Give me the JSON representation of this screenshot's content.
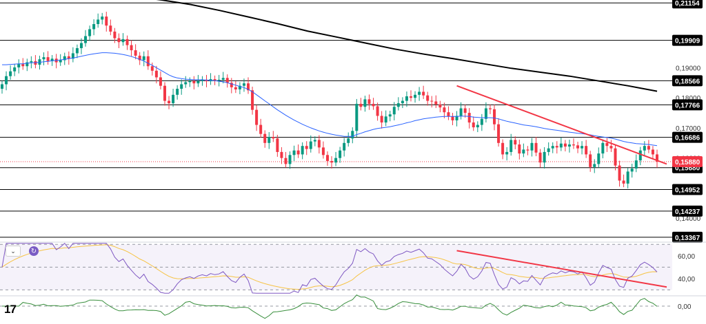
{
  "chart_data": {
    "type": "candlestick",
    "price_axis": {
      "ylim": [
        0.1325,
        0.2125
      ],
      "ticks": [
        "0,19000",
        "0,18000",
        "0,17000",
        "0,16000",
        "0,15000",
        "0,14000"
      ],
      "tick_values": [
        0.19,
        0.18,
        0.17,
        0.16,
        0.15,
        0.14
      ]
    },
    "levels": [
      {
        "label": "0,21154",
        "value": 0.21154
      },
      {
        "label": "0,19909",
        "value": 0.19909
      },
      {
        "label": "0,18566",
        "value": 0.18566
      },
      {
        "label": "0,17766",
        "value": 0.17766
      },
      {
        "label": "0,16686",
        "value": 0.16686
      },
      {
        "label": "0,15680",
        "value": 0.1568
      },
      {
        "label": "0,14952",
        "value": 0.14952
      },
      {
        "label": "0,14237",
        "value": 0.14237
      },
      {
        "label": "0,13367",
        "value": 0.13367
      }
    ],
    "current_price": {
      "label": "0,15880",
      "value": 0.1588,
      "color": "#f23645"
    },
    "closes": [
      0.1845,
      0.1872,
      0.1888,
      0.1901,
      0.1912,
      0.1905,
      0.1918,
      0.1922,
      0.191,
      0.1928,
      0.1935,
      0.1922,
      0.193,
      0.1918,
      0.1925,
      0.1938,
      0.193,
      0.1948,
      0.1965,
      0.1982,
      0.2005,
      0.2028,
      0.2045,
      0.206,
      0.207,
      0.204,
      0.202,
      0.1998,
      0.1985,
      0.1995,
      0.1975,
      0.1958,
      0.194,
      0.1925,
      0.1938,
      0.1905,
      0.189,
      0.1868,
      0.184,
      0.179,
      0.1782,
      0.181,
      0.183,
      0.1845,
      0.1852,
      0.1856,
      0.1848,
      0.1856,
      0.186,
      0.1855,
      0.1862,
      0.1858,
      0.186,
      0.1866,
      0.185,
      0.1835,
      0.1828,
      0.184,
      0.1848,
      0.1825,
      0.176,
      0.171,
      0.168,
      0.165,
      0.167,
      0.1665,
      0.162,
      0.16,
      0.158,
      0.161,
      0.1625,
      0.1612,
      0.164,
      0.163,
      0.1655,
      0.166,
      0.1635,
      0.161,
      0.159,
      0.1585,
      0.16,
      0.1625,
      0.165,
      0.1665,
      0.169,
      0.178,
      0.177,
      0.1795,
      0.178,
      0.1772,
      0.174,
      0.1718,
      0.1738,
      0.1745,
      0.177,
      0.1782,
      0.179,
      0.1805,
      0.18,
      0.181,
      0.182,
      0.1808,
      0.179,
      0.1788,
      0.1778,
      0.1768,
      0.1752,
      0.1738,
      0.1725,
      0.174,
      0.1765,
      0.175,
      0.1718,
      0.1702,
      0.171,
      0.173,
      0.1765,
      0.1762,
      0.1712,
      0.165,
      0.1612,
      0.162,
      0.166,
      0.1645,
      0.1615,
      0.1628,
      0.1625,
      0.165,
      0.1618,
      0.1585,
      0.162,
      0.1632,
      0.164,
      0.1635,
      0.1648,
      0.1638,
      0.1645,
      0.1642,
      0.1632,
      0.164,
      0.1612,
      0.157,
      0.158,
      0.1615,
      0.165,
      0.164,
      0.1632,
      0.1575,
      0.1525,
      0.1515,
      0.1555,
      0.1565,
      0.1592,
      0.1625,
      0.164,
      0.1628,
      0.1612,
      0.1588
    ],
    "ema_short_color": "#2962ff",
    "ema_short": [
      0.191,
      0.191,
      0.1911,
      0.1912,
      0.1913,
      0.1913,
      0.1915,
      0.1916,
      0.1917,
      0.1918,
      0.192,
      0.1921,
      0.1923,
      0.1924,
      0.1926,
      0.1928,
      0.193,
      0.1932,
      0.1935,
      0.1938,
      0.1941,
      0.1944,
      0.1946,
      0.1948,
      0.195,
      0.195,
      0.1949,
      0.1948,
      0.1946,
      0.1944,
      0.1941,
      0.1937,
      0.1933,
      0.1928,
      0.1922,
      0.1915,
      0.1908,
      0.19,
      0.1892,
      0.1884,
      0.1876,
      0.187,
      0.1866,
      0.1864,
      0.1862,
      0.1861,
      0.186,
      0.186,
      0.186,
      0.1859,
      0.1858,
      0.1857,
      0.1855,
      0.1853,
      0.185,
      0.1846,
      0.1842,
      0.1838,
      0.1834,
      0.1828,
      0.182,
      0.181,
      0.18,
      0.179,
      0.178,
      0.177,
      0.176,
      0.1751,
      0.1742,
      0.1734,
      0.1726,
      0.1719,
      0.1712,
      0.1706,
      0.17,
      0.1695,
      0.169,
      0.1686,
      0.1682,
      0.1679,
      0.1676,
      0.1674,
      0.1672,
      0.1672,
      0.1672,
      0.1678,
      0.1682,
      0.1687,
      0.1691,
      0.1695,
      0.1698,
      0.17,
      0.1702,
      0.1704,
      0.1707,
      0.171,
      0.1713,
      0.1717,
      0.172,
      0.1724,
      0.1727,
      0.173,
      0.1732,
      0.1734,
      0.1736,
      0.1737,
      0.1738,
      0.1738,
      0.1738,
      0.1738,
      0.1739,
      0.1739,
      0.1738,
      0.1736,
      0.1735,
      0.1734,
      0.1734,
      0.1734,
      0.1733,
      0.173,
      0.1726,
      0.1722,
      0.1719,
      0.1716,
      0.1713,
      0.171,
      0.1708,
      0.1706,
      0.1704,
      0.1701,
      0.1698,
      0.1696,
      0.1694,
      0.1692,
      0.169,
      0.1688,
      0.1686,
      0.1684,
      0.1682,
      0.1681,
      0.1679,
      0.1677,
      0.1674,
      0.1672,
      0.167,
      0.1668,
      0.1666,
      0.1663,
      0.1659,
      0.1655,
      0.1652,
      0.165,
      0.1648,
      0.1647,
      0.1646,
      0.1645,
      0.1643,
      0.1641
    ],
    "ema_long_color": "#000000",
    "ema_long": [
      0.2145,
      0.2137,
      0.2125,
      0.211,
      0.209,
      0.2068,
      0.2046,
      0.2022,
      0.2002,
      0.1982,
      0.1962,
      0.1945,
      0.193,
      0.1914,
      0.1898,
      0.1885,
      0.1872,
      0.1856,
      0.184,
      0.1822
    ],
    "trendline_color": "#f23645",
    "trendline": {
      "start_index": 109,
      "start_value": 0.184,
      "end_value": 0.158
    },
    "rsi_panel": {
      "ylim": [
        26,
        72
      ],
      "ticks": [
        "60,00",
        "40,00"
      ],
      "tick_values": [
        60,
        40
      ],
      "band": [
        30,
        70
      ],
      "rsi_color": "#7e57c2",
      "signal_color": "#f6c343",
      "trendline_color": "#f23645",
      "trendline": {
        "start_index": 109,
        "start_value": 64.5,
        "end_value": 32.5
      }
    },
    "momentum_panel": {
      "ticks": [
        "0,00"
      ],
      "tick_values": [
        0
      ],
      "color": "#388e3c"
    }
  },
  "ui": {
    "collapse_icon": "chevron-down-icon",
    "refresh_icon": "refresh-icon",
    "logo_text": "17"
  }
}
